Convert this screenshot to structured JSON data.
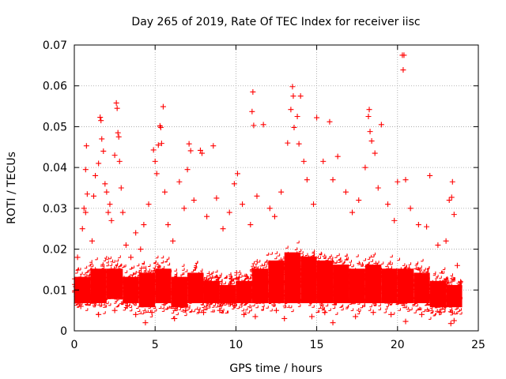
{
  "chart_data": {
    "type": "scatter",
    "title": "Day 265 of 2019, Rate Of TEC Index for receiver iisc",
    "xlabel": "GPS time / hours",
    "ylabel": "ROTI / TECUs",
    "xlim": [
      0,
      25
    ],
    "ylim": [
      0,
      0.07
    ],
    "xticks": [
      0,
      5,
      10,
      15,
      20,
      25
    ],
    "yticks": [
      0,
      0.01,
      0.02,
      0.03,
      0.04,
      0.05,
      0.06,
      0.07
    ],
    "xtick_labels": [
      "0",
      "5",
      "10",
      "15",
      "20",
      "25"
    ],
    "ytick_labels": [
      "0",
      "0.01",
      "0.02",
      "0.03",
      "0.04",
      "0.05",
      "0.06",
      "0.07"
    ],
    "grid": true,
    "marker": "+",
    "marker_color": "#ff0000",
    "series": [
      {
        "name": "ROTI",
        "points": [
          [
            0.2,
            0.018
          ],
          [
            0.3,
            0.012
          ],
          [
            0.5,
            0.025
          ],
          [
            0.6,
            0.03
          ],
          [
            0.7,
            0.029
          ],
          [
            0.7,
            0.0395
          ],
          [
            0.75,
            0.0453
          ],
          [
            0.8,
            0.0335
          ],
          [
            1.1,
            0.022
          ],
          [
            1.2,
            0.033
          ],
          [
            1.3,
            0.038
          ],
          [
            1.5,
            0.041
          ],
          [
            1.6,
            0.0523
          ],
          [
            1.65,
            0.0515
          ],
          [
            1.7,
            0.047
          ],
          [
            1.8,
            0.044
          ],
          [
            1.9,
            0.036
          ],
          [
            2.0,
            0.034
          ],
          [
            2.1,
            0.029
          ],
          [
            2.2,
            0.031
          ],
          [
            2.3,
            0.027
          ],
          [
            2.5,
            0.043
          ],
          [
            2.6,
            0.0558
          ],
          [
            2.65,
            0.0545
          ],
          [
            2.7,
            0.0485
          ],
          [
            2.75,
            0.0475
          ],
          [
            2.8,
            0.0415
          ],
          [
            2.9,
            0.035
          ],
          [
            3.0,
            0.029
          ],
          [
            3.2,
            0.021
          ],
          [
            3.5,
            0.018
          ],
          [
            3.8,
            0.024
          ],
          [
            4.1,
            0.02
          ],
          [
            4.3,
            0.026
          ],
          [
            4.6,
            0.031
          ],
          [
            4.9,
            0.0443
          ],
          [
            5.0,
            0.0415
          ],
          [
            5.1,
            0.0385
          ],
          [
            5.2,
            0.0455
          ],
          [
            5.3,
            0.0502
          ],
          [
            5.35,
            0.0498
          ],
          [
            5.4,
            0.0459
          ],
          [
            5.5,
            0.0549
          ],
          [
            5.6,
            0.034
          ],
          [
            5.8,
            0.026
          ],
          [
            6.1,
            0.022
          ],
          [
            6.5,
            0.0365
          ],
          [
            6.8,
            0.03
          ],
          [
            7.0,
            0.0395
          ],
          [
            7.1,
            0.0458
          ],
          [
            7.2,
            0.0441
          ],
          [
            7.4,
            0.032
          ],
          [
            7.8,
            0.0442
          ],
          [
            7.9,
            0.0435
          ],
          [
            8.2,
            0.028
          ],
          [
            8.6,
            0.0453
          ],
          [
            8.8,
            0.0325
          ],
          [
            9.2,
            0.025
          ],
          [
            9.6,
            0.029
          ],
          [
            9.9,
            0.036
          ],
          [
            10.1,
            0.0385
          ],
          [
            10.4,
            0.031
          ],
          [
            10.9,
            0.026
          ],
          [
            11.0,
            0.0537
          ],
          [
            11.05,
            0.0585
          ],
          [
            11.1,
            0.0503
          ],
          [
            11.3,
            0.033
          ],
          [
            11.7,
            0.0505
          ],
          [
            12.1,
            0.03
          ],
          [
            12.4,
            0.028
          ],
          [
            12.8,
            0.034
          ],
          [
            13.2,
            0.046
          ],
          [
            13.4,
            0.0542
          ],
          [
            13.5,
            0.0598
          ],
          [
            13.55,
            0.0575
          ],
          [
            13.6,
            0.0498
          ],
          [
            13.8,
            0.0525
          ],
          [
            13.9,
            0.0458
          ],
          [
            14.0,
            0.0575
          ],
          [
            14.2,
            0.0415
          ],
          [
            14.4,
            0.037
          ],
          [
            14.8,
            0.031
          ],
          [
            15.0,
            0.0522
          ],
          [
            15.4,
            0.0415
          ],
          [
            15.8,
            0.0512
          ],
          [
            16.0,
            0.037
          ],
          [
            16.3,
            0.0427
          ],
          [
            16.8,
            0.034
          ],
          [
            17.2,
            0.029
          ],
          [
            17.6,
            0.032
          ],
          [
            18.0,
            0.04
          ],
          [
            18.2,
            0.0525
          ],
          [
            18.25,
            0.0542
          ],
          [
            18.3,
            0.0488
          ],
          [
            18.4,
            0.0465
          ],
          [
            18.6,
            0.0435
          ],
          [
            18.8,
            0.035
          ],
          [
            19.0,
            0.0505
          ],
          [
            19.4,
            0.031
          ],
          [
            19.8,
            0.027
          ],
          [
            20.0,
            0.0365
          ],
          [
            20.3,
            0.0675
          ],
          [
            20.35,
            0.0639
          ],
          [
            20.4,
            0.0675
          ],
          [
            20.5,
            0.037
          ],
          [
            20.8,
            0.03
          ],
          [
            21.3,
            0.026
          ],
          [
            21.8,
            0.0255
          ],
          [
            22.0,
            0.038
          ],
          [
            22.5,
            0.021
          ],
          [
            23.0,
            0.022
          ],
          [
            23.2,
            0.032
          ],
          [
            23.35,
            0.0327
          ],
          [
            23.4,
            0.0365
          ],
          [
            23.5,
            0.0285
          ],
          [
            23.7,
            0.016
          ],
          [
            23.9,
            0.012
          ],
          [
            0.4,
            0.006
          ],
          [
            1.5,
            0.004
          ],
          [
            2.5,
            0.005
          ],
          [
            3.8,
            0.004
          ],
          [
            4.4,
            0.002
          ],
          [
            4.8,
            0.0045
          ],
          [
            6.2,
            0.003
          ],
          [
            6.9,
            0.005
          ],
          [
            8.0,
            0.0045
          ],
          [
            9.0,
            0.005
          ],
          [
            10.5,
            0.004
          ],
          [
            11.2,
            0.0035
          ],
          [
            12.5,
            0.005
          ],
          [
            13.0,
            0.003
          ],
          [
            14.7,
            0.0035
          ],
          [
            15.5,
            0.0045
          ],
          [
            16.0,
            0.002
          ],
          [
            17.4,
            0.0035
          ],
          [
            18.5,
            0.0045
          ],
          [
            19.6,
            0.004
          ],
          [
            20.5,
            0.0023
          ],
          [
            21.5,
            0.004
          ],
          [
            22.6,
            0.0045
          ],
          [
            23.3,
            0.0018
          ],
          [
            23.5,
            0.0025
          ]
        ]
      }
    ],
    "dense_band": [
      {
        "x0": 0,
        "x1": 1,
        "y_low": 0.006,
        "y_high": 0.014
      },
      {
        "x0": 1,
        "x1": 2,
        "y_low": 0.006,
        "y_high": 0.016
      },
      {
        "x0": 2,
        "x1": 3,
        "y_low": 0.007,
        "y_high": 0.016
      },
      {
        "x0": 3,
        "x1": 4,
        "y_low": 0.006,
        "y_high": 0.014
      },
      {
        "x0": 4,
        "x1": 5,
        "y_low": 0.005,
        "y_high": 0.015
      },
      {
        "x0": 5,
        "x1": 6,
        "y_low": 0.006,
        "y_high": 0.016
      },
      {
        "x0": 6,
        "x1": 7,
        "y_low": 0.005,
        "y_high": 0.014
      },
      {
        "x0": 7,
        "x1": 8,
        "y_low": 0.006,
        "y_high": 0.015
      },
      {
        "x0": 8,
        "x1": 9,
        "y_low": 0.006,
        "y_high": 0.013
      },
      {
        "x0": 9,
        "x1": 10,
        "y_low": 0.006,
        "y_high": 0.012
      },
      {
        "x0": 10,
        "x1": 11,
        "y_low": 0.006,
        "y_high": 0.013
      },
      {
        "x0": 11,
        "x1": 12,
        "y_low": 0.006,
        "y_high": 0.016
      },
      {
        "x0": 12,
        "x1": 13,
        "y_low": 0.006,
        "y_high": 0.018
      },
      {
        "x0": 13,
        "x1": 14,
        "y_low": 0.006,
        "y_high": 0.02
      },
      {
        "x0": 14,
        "x1": 15,
        "y_low": 0.006,
        "y_high": 0.019
      },
      {
        "x0": 15,
        "x1": 16,
        "y_low": 0.006,
        "y_high": 0.018
      },
      {
        "x0": 16,
        "x1": 17,
        "y_low": 0.006,
        "y_high": 0.017
      },
      {
        "x0": 17,
        "x1": 18,
        "y_low": 0.006,
        "y_high": 0.016
      },
      {
        "x0": 18,
        "x1": 19,
        "y_low": 0.006,
        "y_high": 0.017
      },
      {
        "x0": 19,
        "x1": 20,
        "y_low": 0.006,
        "y_high": 0.016
      },
      {
        "x0": 20,
        "x1": 21,
        "y_low": 0.006,
        "y_high": 0.016
      },
      {
        "x0": 21,
        "x1": 22,
        "y_low": 0.006,
        "y_high": 0.015
      },
      {
        "x0": 22,
        "x1": 23,
        "y_low": 0.005,
        "y_high": 0.013
      },
      {
        "x0": 23,
        "x1": 24,
        "y_low": 0.005,
        "y_high": 0.012
      }
    ],
    "dense_band_fill": "#ff0000"
  }
}
